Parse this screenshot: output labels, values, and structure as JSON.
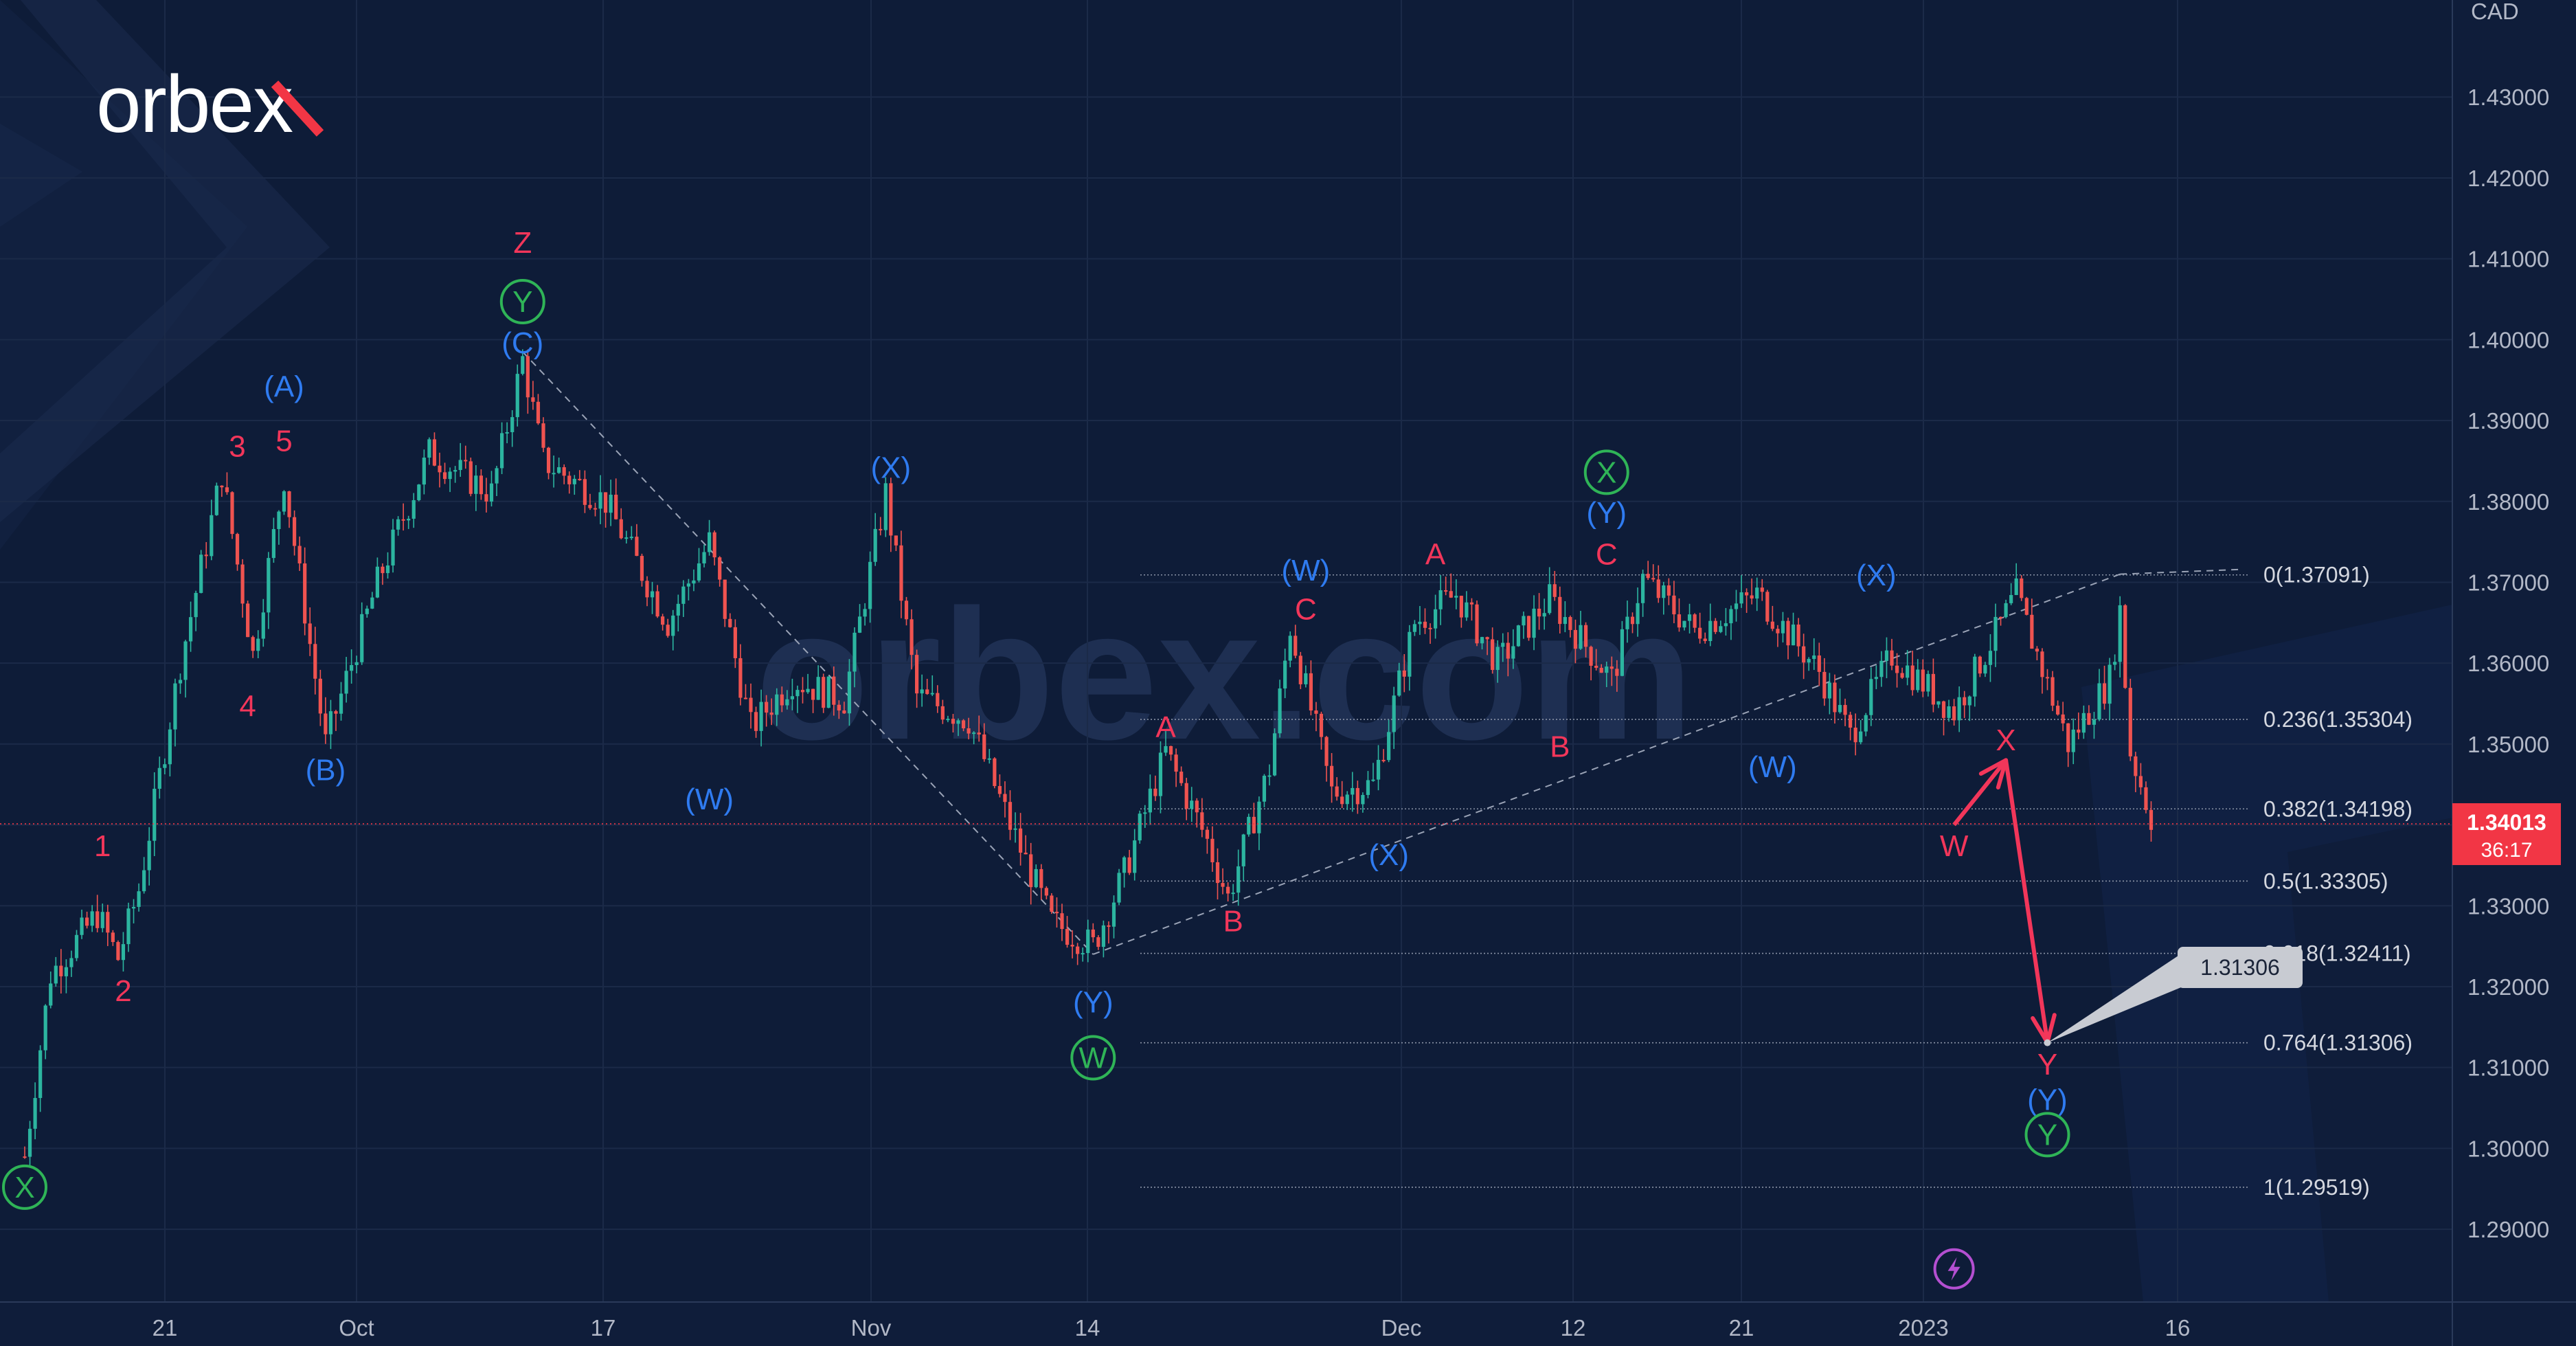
{
  "brand": {
    "logo_text": "orbex",
    "watermark_text": "orbex.com"
  },
  "colors": {
    "background": "#0f1d3a",
    "grid": "#1b2a48",
    "up_candle": "#2cb5a0",
    "down_candle": "#ef5350",
    "wave_red": "#f2365a",
    "wave_blue": "#2f7bf0",
    "wave_green": "#2fb457",
    "fib_line": "#8a93a6",
    "price_tag": "#f23645",
    "callout": "#c8cbd2",
    "bolt": "#b44fd1"
  },
  "axis": {
    "currency_label": "CAD"
  },
  "chart_data": {
    "type": "candlestick",
    "instrument_quote": "CAD",
    "x_tick_labels": [
      "21",
      "Oct",
      "17",
      "Nov",
      "14",
      "Dec",
      "12",
      "21",
      "2023",
      "16"
    ],
    "y_tick_labels": [
      "1.43000",
      "1.42000",
      "1.41000",
      "1.40000",
      "1.39000",
      "1.38000",
      "1.37000",
      "1.36000",
      "1.35000",
      "1.34000",
      "1.33000",
      "1.32000",
      "1.31000",
      "1.30000",
      "1.29000"
    ],
    "ylim": [
      1.281,
      1.442
    ],
    "current_price": {
      "value": "1.34013",
      "countdown": "36:17"
    },
    "target_callout": "1.31306",
    "fibonacci": [
      {
        "label": "0(1.37091)",
        "value": 1.37091
      },
      {
        "label": "0.236(1.35304)",
        "value": 1.35304
      },
      {
        "label": "0.382(1.34198)",
        "value": 1.34198
      },
      {
        "label": "0.5(1.33305)",
        "value": 1.33305
      },
      {
        "label": "0.618(1.32411)",
        "value": 1.32411
      },
      {
        "label": "0.764(1.31306)",
        "value": 1.31306
      },
      {
        "label": "1(1.29519)",
        "value": 1.29519
      }
    ],
    "price_anchors": [
      [
        0,
        1.299
      ],
      [
        5,
        1.3215
      ],
      [
        14,
        1.329
      ],
      [
        18,
        1.3235
      ],
      [
        22,
        1.332
      ],
      [
        30,
        1.36
      ],
      [
        38,
        1.3835
      ],
      [
        44,
        1.361
      ],
      [
        50,
        1.383
      ],
      [
        58,
        1.35
      ],
      [
        68,
        1.37
      ],
      [
        78,
        1.386
      ],
      [
        90,
        1.381
      ],
      [
        96,
        1.3975
      ],
      [
        100,
        1.385
      ],
      [
        112,
        1.38
      ],
      [
        124,
        1.365
      ],
      [
        132,
        1.375
      ],
      [
        140,
        1.352
      ],
      [
        148,
        1.358
      ],
      [
        158,
        1.3555
      ],
      [
        166,
        1.381
      ],
      [
        172,
        1.356
      ],
      [
        182,
        1.353
      ],
      [
        190,
        1.34
      ],
      [
        198,
        1.328
      ],
      [
        206,
        1.325
      ],
      [
        212,
        1.334
      ],
      [
        220,
        1.349
      ],
      [
        228,
        1.338
      ],
      [
        232,
        1.331
      ],
      [
        240,
        1.347
      ],
      [
        244,
        1.3645
      ],
      [
        252,
        1.344
      ],
      [
        260,
        1.345
      ],
      [
        268,
        1.365
      ],
      [
        276,
        1.3685
      ],
      [
        284,
        1.36
      ],
      [
        294,
        1.368
      ],
      [
        306,
        1.358
      ],
      [
        312,
        1.3705
      ],
      [
        322,
        1.364
      ],
      [
        334,
        1.3685
      ],
      [
        346,
        1.359
      ],
      [
        352,
        1.351
      ],
      [
        360,
        1.361
      ],
      [
        372,
        1.354
      ],
      [
        384,
        1.3685
      ],
      [
        394,
        1.35
      ],
      [
        402,
        1.358
      ],
      [
        404,
        1.3665
      ],
      [
        406,
        1.349
      ],
      [
        410,
        1.341
      ]
    ],
    "wave_labels": [
      {
        "text": "X",
        "idx": 0,
        "price": 1.2952,
        "color": "green",
        "circled": true
      },
      {
        "text": "1",
        "idx": 15,
        "price": 1.3374,
        "color": "red"
      },
      {
        "text": "2",
        "idx": 19,
        "price": 1.3195,
        "color": "red"
      },
      {
        "text": "3",
        "idx": 41,
        "price": 1.3868,
        "color": "red"
      },
      {
        "text": "4",
        "idx": 43,
        "price": 1.3547,
        "color": "red"
      },
      {
        "text": "5",
        "idx": 50,
        "price": 1.3875,
        "color": "red"
      },
      {
        "text": "(A)",
        "idx": 50,
        "price": 1.3942,
        "color": "blue"
      },
      {
        "text": "(B)",
        "idx": 58,
        "price": 1.3468,
        "color": "blue"
      },
      {
        "text": "Z",
        "idx": 96,
        "price": 1.412,
        "color": "red"
      },
      {
        "text": "Y",
        "idx": 96,
        "price": 1.4047,
        "color": "green",
        "circled": true
      },
      {
        "text": "(C)",
        "idx": 96,
        "price": 1.3996,
        "color": "blue"
      },
      {
        "text": "(W)",
        "idx": 132,
        "price": 1.3432,
        "color": "blue"
      },
      {
        "text": "(X)",
        "idx": 167,
        "price": 1.3842,
        "color": "blue"
      },
      {
        "text": "(Y)",
        "idx": 206,
        "price": 1.3181,
        "color": "blue"
      },
      {
        "text": "W",
        "idx": 206,
        "price": 1.3112,
        "color": "green",
        "circled": true
      },
      {
        "text": "A",
        "idx": 220,
        "price": 1.3521,
        "color": "red"
      },
      {
        "text": "B",
        "idx": 233,
        "price": 1.3281,
        "color": "red"
      },
      {
        "text": "C",
        "idx": 247,
        "price": 1.3667,
        "color": "red"
      },
      {
        "text": "(W)",
        "idx": 247,
        "price": 1.3715,
        "color": "blue"
      },
      {
        "text": "(X)",
        "idx": 263,
        "price": 1.3363,
        "color": "blue"
      },
      {
        "text": "A",
        "idx": 272,
        "price": 1.3735,
        "color": "red"
      },
      {
        "text": "B",
        "idx": 296,
        "price": 1.3497,
        "color": "red"
      },
      {
        "text": "C",
        "idx": 305,
        "price": 1.3735,
        "color": "red"
      },
      {
        "text": "(Y)",
        "idx": 305,
        "price": 1.3786,
        "color": "blue"
      },
      {
        "text": "X",
        "idx": 305,
        "price": 1.3836,
        "color": "green",
        "circled": true
      },
      {
        "text": "(W)",
        "idx": 337,
        "price": 1.3472,
        "color": "blue"
      },
      {
        "text": "(X)",
        "idx": 357,
        "price": 1.3709,
        "color": "blue"
      },
      {
        "text": "W",
        "idx": 372,
        "price": 1.3374,
        "color": "red"
      },
      {
        "text": "X",
        "idx": 382,
        "price": 1.3505,
        "color": "red"
      },
      {
        "text": "Y",
        "idx": 390,
        "price": 1.3104,
        "color": "red"
      },
      {
        "text": "(Y)",
        "idx": 390,
        "price": 1.306,
        "color": "blue"
      },
      {
        "text": "Y",
        "idx": 390,
        "price": 1.3017,
        "color": "green",
        "circled": true
      }
    ],
    "forecast_path": [
      [
        372,
        1.34
      ],
      [
        382,
        1.348
      ],
      [
        390,
        1.3131
      ]
    ],
    "trendlines": [
      {
        "from": [
          96,
          1.3985
        ],
        "to": [
          206,
          1.324
        ],
        "style": "dashed"
      },
      {
        "from": [
          206,
          1.324
        ],
        "to": [
          404,
          1.371
        ],
        "style": "dashed"
      }
    ],
    "marker_icons": [
      {
        "name": "bolt-icon",
        "idx": 372,
        "price": 1.2851
      }
    ]
  }
}
